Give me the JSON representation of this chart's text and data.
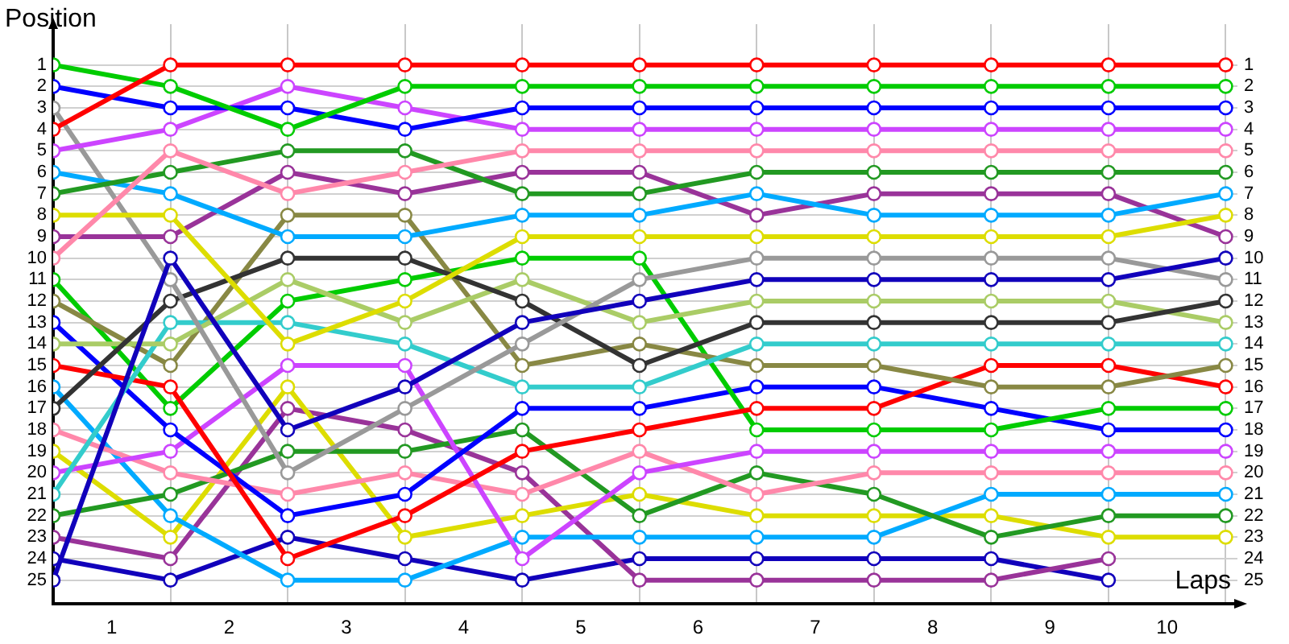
{
  "chart_data": {
    "type": "line",
    "xlabel": "Laps",
    "ylabel": "Position",
    "x": [
      0,
      1,
      2,
      3,
      4,
      5,
      6,
      7,
      8,
      9,
      10
    ],
    "xlim": [
      0,
      10.1
    ],
    "xticks": [
      {
        "value": 0,
        "label": null
      },
      {
        "value": 0.5,
        "label": "1"
      },
      {
        "value": 1,
        "label": null
      },
      {
        "value": 1.5,
        "label": "2"
      },
      {
        "value": 2,
        "label": null
      },
      {
        "value": 2.5,
        "label": "3"
      },
      {
        "value": 3,
        "label": null
      },
      {
        "value": 3.5,
        "label": "4"
      },
      {
        "value": 4,
        "label": null
      },
      {
        "value": 4.5,
        "label": "5"
      },
      {
        "value": 5,
        "label": null
      },
      {
        "value": 5.5,
        "label": "6"
      },
      {
        "value": 6,
        "label": null
      },
      {
        "value": 6.5,
        "label": "7"
      },
      {
        "value": 7,
        "label": null
      },
      {
        "value": 7.5,
        "label": "8"
      },
      {
        "value": 8,
        "label": null
      },
      {
        "value": 8.5,
        "label": "9"
      },
      {
        "value": 9,
        "label": null
      },
      {
        "value": 9.5,
        "label": "10"
      },
      {
        "value": 10,
        "label": null
      }
    ],
    "ylim": [
      26.1,
      -0.9
    ],
    "yticks": [
      1,
      2,
      3,
      4,
      5,
      6,
      7,
      8,
      9,
      10,
      11,
      12,
      13,
      14,
      15,
      16,
      17,
      18,
      19,
      20,
      21,
      22,
      23,
      24,
      25
    ],
    "y2lim": [
      26.1,
      -0.9
    ],
    "y2ticks": [
      1,
      2,
      3,
      4,
      5,
      6,
      7,
      8,
      9,
      10,
      11,
      12,
      13,
      14,
      15,
      16,
      17,
      18,
      19,
      20,
      21,
      22,
      23,
      24,
      25
    ],
    "grid": true,
    "legend": false,
    "marker": "circle",
    "line_style": "solid",
    "series": [
      {
        "color": "#ff0000",
        "values": [
          4,
          1,
          1,
          1,
          1,
          1,
          1,
          1,
          1,
          1,
          1
        ]
      },
      {
        "color": "#00cc00",
        "values": [
          1,
          2,
          4,
          2,
          2,
          2,
          2,
          2,
          2,
          2,
          2
        ]
      },
      {
        "color": "#0000ff",
        "values": [
          2,
          3,
          3,
          4,
          3,
          3,
          3,
          3,
          3,
          3,
          3
        ]
      },
      {
        "color": "#cc44ff",
        "values": [
          5,
          4,
          2,
          3,
          4,
          4,
          4,
          4,
          4,
          4,
          4
        ]
      },
      {
        "color": "#ff88aa",
        "values": [
          10,
          5,
          7,
          6,
          5,
          5,
          5,
          5,
          5,
          5,
          5
        ]
      },
      {
        "color": "#229922",
        "values": [
          7,
          6,
          5,
          5,
          7,
          7,
          6,
          6,
          6,
          6,
          6
        ]
      },
      {
        "color": "#00aaff",
        "values": [
          6,
          7,
          9,
          9,
          8,
          8,
          7,
          8,
          8,
          8,
          7
        ]
      },
      {
        "color": "#dddd00",
        "values": [
          8,
          8,
          14,
          12,
          9,
          9,
          9,
          9,
          9,
          9,
          8
        ]
      },
      {
        "color": "#993399",
        "values": [
          9,
          9,
          6,
          7,
          6,
          6,
          8,
          7,
          7,
          7,
          9
        ]
      },
      {
        "color": "#1100bb",
        "values": [
          25,
          10,
          18,
          16,
          13,
          12,
          11,
          11,
          11,
          11,
          10
        ]
      },
      {
        "color": "#999999",
        "values": [
          3,
          11,
          20,
          17,
          14,
          11,
          10,
          10,
          10,
          10,
          11
        ]
      },
      {
        "color": "#333333",
        "values": [
          17,
          12,
          10,
          10,
          12,
          15,
          13,
          13,
          13,
          13,
          12
        ]
      },
      {
        "color": "#aacc66",
        "values": [
          14,
          14,
          11,
          13,
          11,
          13,
          12,
          12,
          12,
          12,
          13
        ]
      },
      {
        "color": "#33cccc",
        "values": [
          21,
          13,
          13,
          14,
          16,
          16,
          14,
          14,
          14,
          14,
          14
        ]
      },
      {
        "color": "#888844",
        "values": [
          12,
          15,
          8,
          8,
          15,
          14,
          15,
          15,
          16,
          16,
          15
        ]
      },
      {
        "color": "#ff0000",
        "values": [
          15,
          16,
          24,
          22,
          19,
          18,
          17,
          17,
          15,
          15,
          16
        ]
      },
      {
        "color": "#00cc00",
        "values": [
          11,
          17,
          12,
          11,
          10,
          10,
          18,
          18,
          18,
          17,
          17
        ]
      },
      {
        "color": "#0000ff",
        "values": [
          13,
          18,
          22,
          21,
          17,
          17,
          16,
          16,
          17,
          18,
          18
        ]
      },
      {
        "color": "#cc44ff",
        "values": [
          20,
          19,
          15,
          15,
          24,
          20,
          19,
          19,
          19,
          19,
          19
        ]
      },
      {
        "color": "#ff88aa",
        "values": [
          18,
          20,
          21,
          20,
          21,
          19,
          21,
          20,
          20,
          20,
          20
        ]
      },
      {
        "color": "#229922",
        "values": [
          22,
          21,
          19,
          19,
          18,
          22,
          20,
          21,
          23,
          22,
          22
        ]
      },
      {
        "color": "#00aaff",
        "values": [
          16,
          22,
          25,
          25,
          23,
          23,
          23,
          23,
          21,
          21,
          21
        ]
      },
      {
        "color": "#dddd00",
        "values": [
          19,
          23,
          16,
          23,
          22,
          21,
          22,
          22,
          22,
          23,
          23
        ]
      },
      {
        "color": "#993399",
        "values": [
          23,
          24,
          17,
          18,
          20,
          25,
          25,
          25,
          25,
          24,
          null
        ]
      },
      {
        "color": "#1100bb",
        "values": [
          24,
          25,
          23,
          24,
          25,
          24,
          24,
          24,
          24,
          25,
          null
        ]
      }
    ]
  }
}
